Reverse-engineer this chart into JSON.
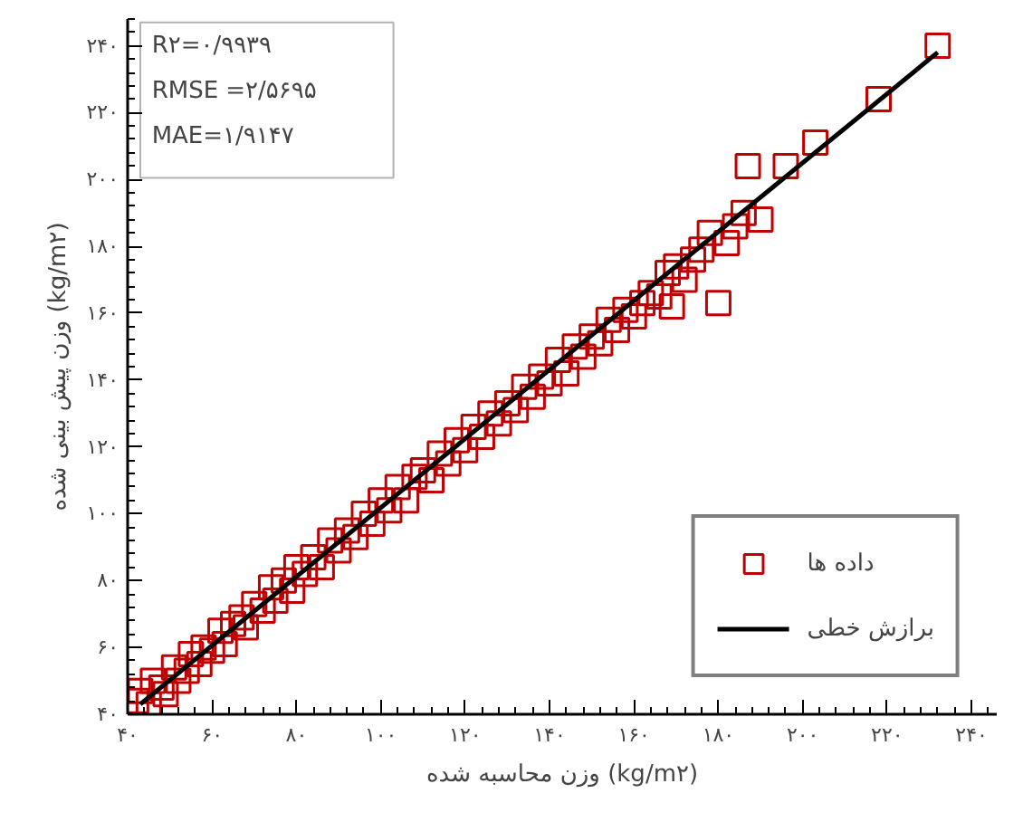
{
  "chart_data": {
    "type": "scatter",
    "xlabel": "وزن محاسبه شده (kg/m۲)",
    "ylabel": "وزن پیش بینی شده (kg/m۲)",
    "annotations": [
      "R۲=۰/۹۹۳۹",
      "RMSE =۲/۵۶۹۵",
      "MAE=۱/۹۱۴۷"
    ],
    "xlim": [
      40,
      246
    ],
    "ylim": [
      40,
      248
    ],
    "xticks": [
      {
        "value": 40,
        "label": "۴۰"
      },
      {
        "value": 60,
        "label": "۶۰"
      },
      {
        "value": 80,
        "label": "۸۰"
      },
      {
        "value": 100,
        "label": "۱۰۰"
      },
      {
        "value": 120,
        "label": "۱۲۰"
      },
      {
        "value": 140,
        "label": "۱۴۰"
      },
      {
        "value": 160,
        "label": "۱۶۰"
      },
      {
        "value": 180,
        "label": "۱۸۰"
      },
      {
        "value": 200,
        "label": "۲۰۰"
      },
      {
        "value": 220,
        "label": "۲۲۰"
      },
      {
        "value": 240,
        "label": "۲۴۰"
      }
    ],
    "yticks": [
      {
        "value": 40,
        "label": "۴۰"
      },
      {
        "value": 60,
        "label": "۶۰"
      },
      {
        "value": 80,
        "label": "۸۰"
      },
      {
        "value": 100,
        "label": "۱۰۰"
      },
      {
        "value": 120,
        "label": "۱۲۰"
      },
      {
        "value": 140,
        "label": "۱۴۰"
      },
      {
        "value": 160,
        "label": "۱۶۰"
      },
      {
        "value": 180,
        "label": "۱۸۰"
      },
      {
        "value": 200,
        "label": "۲۰۰"
      },
      {
        "value": 220,
        "label": "۲۲۰"
      },
      {
        "value": 240,
        "label": "۲۴۰"
      }
    ],
    "grid": false,
    "legend": "bottom right",
    "marker": "square",
    "series": [
      {
        "name": "داده ها",
        "color": "#c00000",
        "x": [
          42,
          43,
          45,
          46,
          48,
          49,
          51,
          52,
          54,
          55,
          57,
          58,
          60,
          62,
          63,
          65,
          67,
          68,
          70,
          72,
          74,
          75,
          77,
          79,
          80,
          82,
          84,
          86,
          88,
          90,
          92,
          94,
          96,
          98,
          100,
          102,
          104,
          106,
          108,
          110,
          112,
          114,
          116,
          118,
          120,
          122,
          124,
          126,
          128,
          130,
          132,
          134,
          136,
          138,
          140,
          142,
          144,
          146,
          148,
          150,
          152,
          154,
          156,
          158,
          160,
          162,
          164,
          166,
          168,
          169,
          170,
          172,
          174,
          176,
          178,
          180,
          182,
          184,
          186,
          187,
          190,
          196,
          203,
          218,
          232
        ],
        "values": [
          44,
          47,
          43,
          50,
          48,
          46,
          54,
          50,
          53,
          58,
          55,
          60,
          59,
          65,
          61,
          67,
          69,
          66,
          73,
          71,
          78,
          74,
          80,
          77,
          84,
          82,
          87,
          84,
          92,
          89,
          95,
          93,
          100,
          97,
          104,
          101,
          108,
          104,
          111,
          113,
          110,
          118,
          115,
          122,
          119,
          126,
          123,
          130,
          127,
          133,
          131,
          138,
          135,
          141,
          139,
          146,
          142,
          150,
          147,
          153,
          151,
          158,
          155,
          161,
          159,
          163,
          166,
          165,
          172,
          162,
          174,
          170,
          176,
          179,
          184,
          163,
          181,
          186,
          190,
          204,
          188,
          204,
          211,
          224,
          240
        ]
      },
      {
        "name": "برازش خطی",
        "type": "line",
        "color": "#000000",
        "marker": "none",
        "line_style": "solid",
        "x": [
          43,
          232
        ],
        "values": [
          43,
          238
        ]
      }
    ]
  }
}
